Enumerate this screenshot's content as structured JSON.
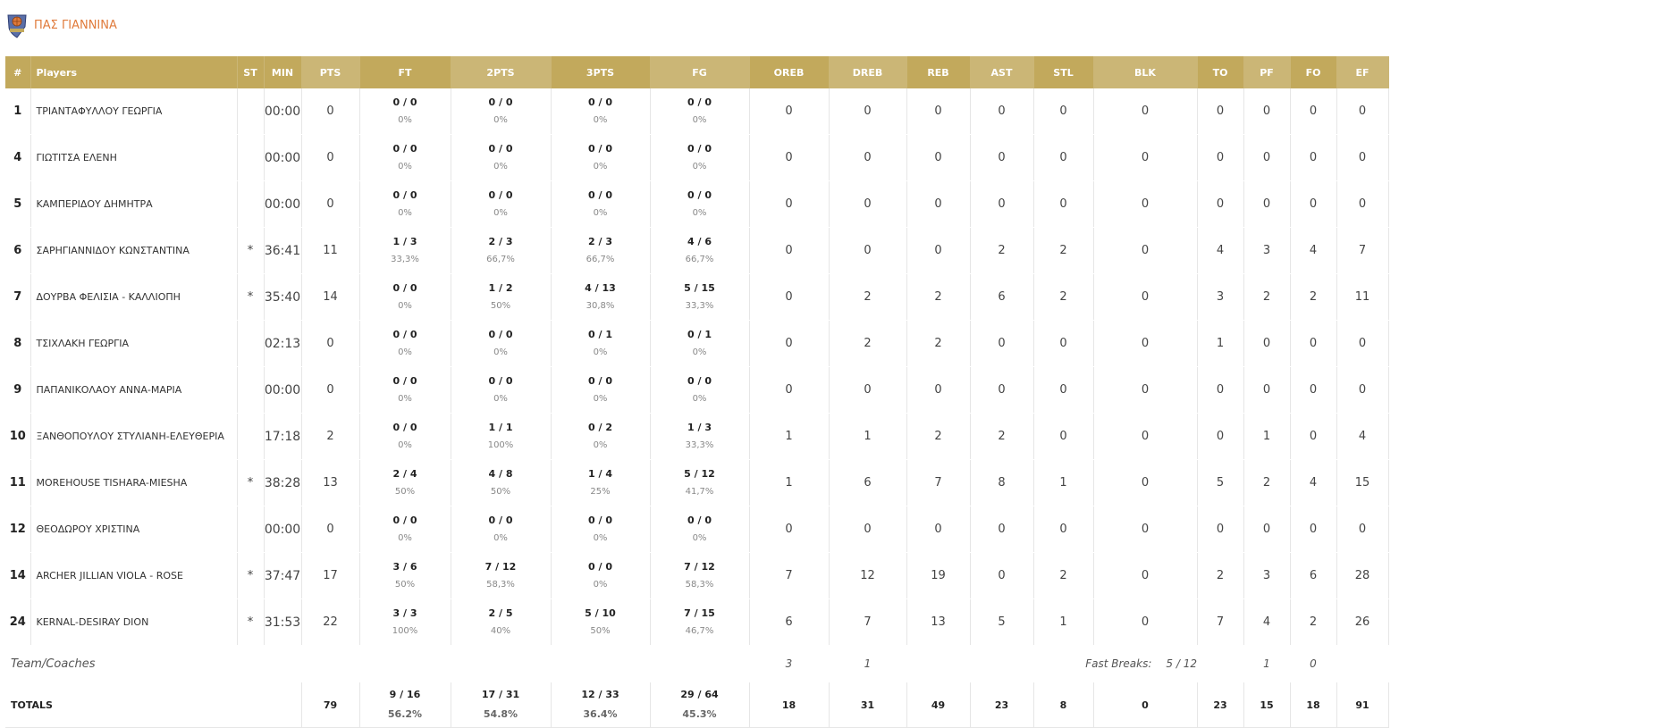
{
  "team": {
    "name": "ΠΑΣ ΓΙΑΝΝΙΝΑ",
    "logo_icon": "team-crest-icon",
    "accent_color": "#e07b3c"
  },
  "colors": {
    "header": "#c2a95c",
    "header_alt": "#cbb676"
  },
  "columns": [
    "#",
    "Players",
    "ST",
    "MIN",
    "PTS",
    "FT",
    "2PTS",
    "3PTS",
    "FG",
    "OREB",
    "DREB",
    "REB",
    "AST",
    "STL",
    "BLK",
    "TO",
    "PF",
    "FO",
    "EF"
  ],
  "players": [
    {
      "num": "1",
      "name": "ΤΡΙΑΝΤΑΦΥΛΛΟΥ ΓΕΩΡΓΙΑ",
      "st": "",
      "min": "00:00",
      "pts": "0",
      "ft": "0 / 0",
      "ft_pct": "0%",
      "p2": "0 / 0",
      "p2_pct": "0%",
      "p3": "0 / 0",
      "p3_pct": "0%",
      "fg": "0 / 0",
      "fg_pct": "0%",
      "oreb": "0",
      "dreb": "0",
      "reb": "0",
      "ast": "0",
      "stl": "0",
      "blk": "0",
      "to": "0",
      "pf": "0",
      "fo": "0",
      "ef": "0"
    },
    {
      "num": "4",
      "name": "ΓΙΩΤΙΤΣΑ ΕΛΕΝΗ",
      "st": "",
      "min": "00:00",
      "pts": "0",
      "ft": "0 / 0",
      "ft_pct": "0%",
      "p2": "0 / 0",
      "p2_pct": "0%",
      "p3": "0 / 0",
      "p3_pct": "0%",
      "fg": "0 / 0",
      "fg_pct": "0%",
      "oreb": "0",
      "dreb": "0",
      "reb": "0",
      "ast": "0",
      "stl": "0",
      "blk": "0",
      "to": "0",
      "pf": "0",
      "fo": "0",
      "ef": "0"
    },
    {
      "num": "5",
      "name": "ΚΑΜΠΕΡΙΔΟΥ ΔΗΜΗΤΡΑ",
      "st": "",
      "min": "00:00",
      "pts": "0",
      "ft": "0 / 0",
      "ft_pct": "0%",
      "p2": "0 / 0",
      "p2_pct": "0%",
      "p3": "0 / 0",
      "p3_pct": "0%",
      "fg": "0 / 0",
      "fg_pct": "0%",
      "oreb": "0",
      "dreb": "0",
      "reb": "0",
      "ast": "0",
      "stl": "0",
      "blk": "0",
      "to": "0",
      "pf": "0",
      "fo": "0",
      "ef": "0"
    },
    {
      "num": "6",
      "name": "ΣΑΡΗΓΙΑΝΝΙΔΟΥ ΚΩΝΣΤΑΝΤΙΝΑ",
      "st": "*",
      "min": "36:41",
      "pts": "11",
      "ft": "1 / 3",
      "ft_pct": "33,3%",
      "p2": "2 / 3",
      "p2_pct": "66,7%",
      "p3": "2 / 3",
      "p3_pct": "66,7%",
      "fg": "4 / 6",
      "fg_pct": "66,7%",
      "oreb": "0",
      "dreb": "0",
      "reb": "0",
      "ast": "2",
      "stl": "2",
      "blk": "0",
      "to": "4",
      "pf": "3",
      "fo": "4",
      "ef": "7"
    },
    {
      "num": "7",
      "name": "ΔΟΥΡΒΑ ΦΕΛΙΣΙΑ - ΚΑΛΛΙΟΠΗ",
      "st": "*",
      "min": "35:40",
      "pts": "14",
      "ft": "0 / 0",
      "ft_pct": "0%",
      "p2": "1 / 2",
      "p2_pct": "50%",
      "p3": "4 / 13",
      "p3_pct": "30,8%",
      "fg": "5 / 15",
      "fg_pct": "33,3%",
      "oreb": "0",
      "dreb": "2",
      "reb": "2",
      "ast": "6",
      "stl": "2",
      "blk": "0",
      "to": "3",
      "pf": "2",
      "fo": "2",
      "ef": "11"
    },
    {
      "num": "8",
      "name": "ΤΣΙΧΛΑΚΗ ΓΕΩΡΓΙΑ",
      "st": "",
      "min": "02:13",
      "pts": "0",
      "ft": "0 / 0",
      "ft_pct": "0%",
      "p2": "0 / 0",
      "p2_pct": "0%",
      "p3": "0 / 1",
      "p3_pct": "0%",
      "fg": "0 / 1",
      "fg_pct": "0%",
      "oreb": "0",
      "dreb": "2",
      "reb": "2",
      "ast": "0",
      "stl": "0",
      "blk": "0",
      "to": "1",
      "pf": "0",
      "fo": "0",
      "ef": "0"
    },
    {
      "num": "9",
      "name": "ΠΑΠΑΝΙΚΟΛΑΟΥ ΑΝΝΑ-ΜΑΡΙΑ",
      "st": "",
      "min": "00:00",
      "pts": "0",
      "ft": "0 / 0",
      "ft_pct": "0%",
      "p2": "0 / 0",
      "p2_pct": "0%",
      "p3": "0 / 0",
      "p3_pct": "0%",
      "fg": "0 / 0",
      "fg_pct": "0%",
      "oreb": "0",
      "dreb": "0",
      "reb": "0",
      "ast": "0",
      "stl": "0",
      "blk": "0",
      "to": "0",
      "pf": "0",
      "fo": "0",
      "ef": "0"
    },
    {
      "num": "10",
      "name": "ΞΑΝΘΟΠΟΥΛΟΥ ΣΤΥΛΙΑΝΗ-ΕΛΕΥΘΕΡΙΑ",
      "st": "",
      "min": "17:18",
      "pts": "2",
      "ft": "0 / 0",
      "ft_pct": "0%",
      "p2": "1 / 1",
      "p2_pct": "100%",
      "p3": "0 / 2",
      "p3_pct": "0%",
      "fg": "1 / 3",
      "fg_pct": "33,3%",
      "oreb": "1",
      "dreb": "1",
      "reb": "2",
      "ast": "2",
      "stl": "0",
      "blk": "0",
      "to": "0",
      "pf": "1",
      "fo": "0",
      "ef": "4"
    },
    {
      "num": "11",
      "name": "MOREHOUSE TISHARA-MIESHA",
      "st": "*",
      "min": "38:28",
      "pts": "13",
      "ft": "2 / 4",
      "ft_pct": "50%",
      "p2": "4 / 8",
      "p2_pct": "50%",
      "p3": "1 / 4",
      "p3_pct": "25%",
      "fg": "5 / 12",
      "fg_pct": "41,7%",
      "oreb": "1",
      "dreb": "6",
      "reb": "7",
      "ast": "8",
      "stl": "1",
      "blk": "0",
      "to": "5",
      "pf": "2",
      "fo": "4",
      "ef": "15"
    },
    {
      "num": "12",
      "name": "ΘΕΟΔΩΡΟΥ ΧΡΙΣΤΙΝΑ",
      "st": "",
      "min": "00:00",
      "pts": "0",
      "ft": "0 / 0",
      "ft_pct": "0%",
      "p2": "0 / 0",
      "p2_pct": "0%",
      "p3": "0 / 0",
      "p3_pct": "0%",
      "fg": "0 / 0",
      "fg_pct": "0%",
      "oreb": "0",
      "dreb": "0",
      "reb": "0",
      "ast": "0",
      "stl": "0",
      "blk": "0",
      "to": "0",
      "pf": "0",
      "fo": "0",
      "ef": "0"
    },
    {
      "num": "14",
      "name": "ARCHER JILLIAN VIOLA - ROSE",
      "st": "*",
      "min": "37:47",
      "pts": "17",
      "ft": "3 / 6",
      "ft_pct": "50%",
      "p2": "7 / 12",
      "p2_pct": "58,3%",
      "p3": "0 / 0",
      "p3_pct": "0%",
      "fg": "7 / 12",
      "fg_pct": "58,3%",
      "oreb": "7",
      "dreb": "12",
      "reb": "19",
      "ast": "0",
      "stl": "2",
      "blk": "0",
      "to": "2",
      "pf": "3",
      "fo": "6",
      "ef": "28"
    },
    {
      "num": "24",
      "name": "KERNAL-DESIRAY DION",
      "st": "*",
      "min": "31:53",
      "pts": "22",
      "ft": "3 / 3",
      "ft_pct": "100%",
      "p2": "2 / 5",
      "p2_pct": "40%",
      "p3": "5 / 10",
      "p3_pct": "50%",
      "fg": "7 / 15",
      "fg_pct": "46,7%",
      "oreb": "6",
      "dreb": "7",
      "reb": "13",
      "ast": "5",
      "stl": "1",
      "blk": "0",
      "to": "7",
      "pf": "4",
      "fo": "2",
      "ef": "26"
    }
  ],
  "team_coaches": {
    "label": "Team/Coaches",
    "oreb": "3",
    "dreb": "1",
    "fast_breaks_label": "Fast Breaks:",
    "fast_breaks_value": "5 / 12",
    "to": "1",
    "pf": "0"
  },
  "totals": {
    "label": "TOTALS",
    "pts": "79",
    "ft": "9 / 16",
    "ft_pct": "56.2%",
    "p2": "17 / 31",
    "p2_pct": "54.8%",
    "p3": "12 / 33",
    "p3_pct": "36.4%",
    "fg": "29 / 64",
    "fg_pct": "45.3%",
    "oreb": "18",
    "dreb": "31",
    "reb": "49",
    "ast": "23",
    "stl": "8",
    "blk": "0",
    "to": "23",
    "pf": "15",
    "fo": "18",
    "ef": "91"
  }
}
